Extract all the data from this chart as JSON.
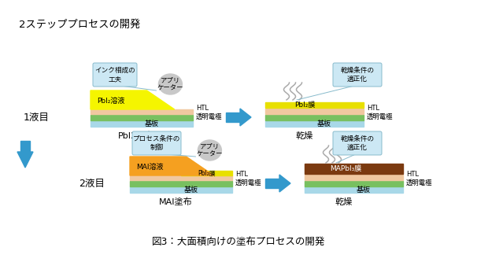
{
  "title": "図3：大面積向けの塗布プロセスの開発",
  "heading": "2ステッププロセスの開発",
  "bg_color": "#ffffff",
  "colors": {
    "yellow": "#f5f500",
    "orange": "#f5a020",
    "salmon": "#f0c8a0",
    "green": "#78c060",
    "light_blue": "#a8d8e8",
    "brown": "#7b3a10",
    "pbi2_yellow": "#e8e000",
    "callout_box": "#cce8f4",
    "callout_edge": "#88bbcc",
    "arrow_blue": "#3399cc"
  },
  "row1_label": "1液目",
  "row2_label": "2液目",
  "step1_bottom_label": "PbI2塗布",
  "step1_right_label": "乾燥",
  "step2_bottom_label": "MAI塗布",
  "step2_right_label": "乾燥",
  "callout1_text": "インク相成の\n工夫",
  "callout2_text": "プロセス条件の\n制御",
  "callout3_text": "乾燥条件の\n適正化",
  "callout4_text": "乾燥条件の\n適正化",
  "applicator_text": "アプリ\nケーター",
  "htl_text": "HTL\n透明電極",
  "kiban_text": "基板",
  "pbi2_sol_text": "PbI₂溶液",
  "pbi2_film_text": "PbI₂膜",
  "mai_sol_text": "MAI溶液",
  "mapbi3_text": "MAPbI₃膜"
}
